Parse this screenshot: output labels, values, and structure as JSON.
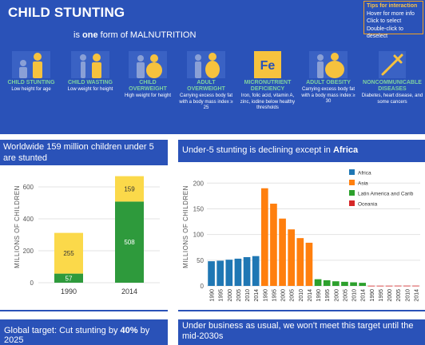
{
  "banner": {
    "title": "CHILD STUNTING",
    "subtitle_pre": "is",
    "subtitle_bold": "one",
    "subtitle_post": "form of  MALNUTRITION",
    "tips": [
      "Tips for interaction",
      "Hover for more info",
      "Click to select",
      "Double-click to deselect"
    ],
    "categories": [
      {
        "label": "CHILD STUNTING",
        "desc": "Low height for age",
        "icon": "short-and-tall-child-icon"
      },
      {
        "label": "CHILD WASTING",
        "desc": "Low weight for height",
        "icon": "thin-and-normal-child-icon"
      },
      {
        "label": "CHILD OVERWEIGHT",
        "desc": "High weight for height",
        "icon": "heavy-and-normal-child-icon"
      },
      {
        "label": "ADULT OVERWEIGHT",
        "desc": "Carrying excess body fat with a body mass index ≥ 25",
        "icon": "overweight-adult-icon"
      },
      {
        "label": "MICRONUTRIENT DEFICIENCY",
        "desc": "Iron, folic acid, vitamin A, zinc, iodine below healthy thresholds",
        "icon": "iron-element-icon",
        "icon_text": "Fe"
      },
      {
        "label": "ADULT OBESITY",
        "desc": "Carrying excess body fat with a body mass index ≥ 30",
        "icon": "obese-adult-icon"
      },
      {
        "label": "NONCOMMUNICABLE DISEASES",
        "desc": "Diabetes, heart disease, and some cancers",
        "icon": "syringe-icon"
      }
    ]
  },
  "panels": {
    "p1_title": "Worldwide 159 million children under 5 are stunted",
    "p2_title_pre": "Under-5 stunting is declining except in ",
    "p2_title_bold": "Africa",
    "p3_title_pre": "Global target: Cut stunting by ",
    "p3_title_bold": "40%",
    "p3_title_post": " by 2025",
    "p4_title": "Under business as usual, we won't meet this target until the  mid-2030s"
  },
  "colors": {
    "banner": "#2a52b8",
    "africa": "#1f77b4",
    "asia": "#ff7f0e",
    "latam": "#2ca02c",
    "oceania": "#d62728",
    "stacked_green": "#2e9a3c",
    "stacked_yellow": "#fbd94a"
  },
  "chart_data": [
    {
      "type": "bar",
      "stacked": true,
      "categories": [
        "1990",
        "2014"
      ],
      "series": [
        {
          "values": [
            57,
            508
          ],
          "color": "#2e9a3c"
        },
        {
          "values": [
            255,
            159
          ],
          "color": "#fbd94a"
        }
      ],
      "ylabel": "MILLIONS OF CHILDREN",
      "yticks": [
        0,
        200,
        400,
        600
      ],
      "ylim": [
        0,
        700
      ]
    },
    {
      "type": "bar",
      "categories": [
        "1990",
        "1995",
        "2000",
        "2005",
        "2010",
        "2014"
      ],
      "series": [
        {
          "name": "Africa",
          "values": [
            48,
            49,
            51,
            53,
            56,
            58
          ],
          "color": "#1f77b4"
        },
        {
          "name": "Asia",
          "values": [
            190,
            160,
            131,
            110,
            93,
            84
          ],
          "color": "#ff7f0e"
        },
        {
          "name": "Latin America and Carib",
          "values": [
            13,
            11,
            9,
            8,
            7,
            6
          ],
          "color": "#2ca02c"
        },
        {
          "name": "Oceania",
          "values": [
            0.4,
            0.4,
            0.4,
            0.5,
            0.5,
            0.5
          ],
          "color": "#d62728"
        }
      ],
      "ylabel": "MILLIONS OF CHILDREN",
      "yticks": [
        0,
        50,
        100,
        150,
        200
      ],
      "ylim": [
        0,
        230
      ],
      "legend": "top-left"
    }
  ]
}
